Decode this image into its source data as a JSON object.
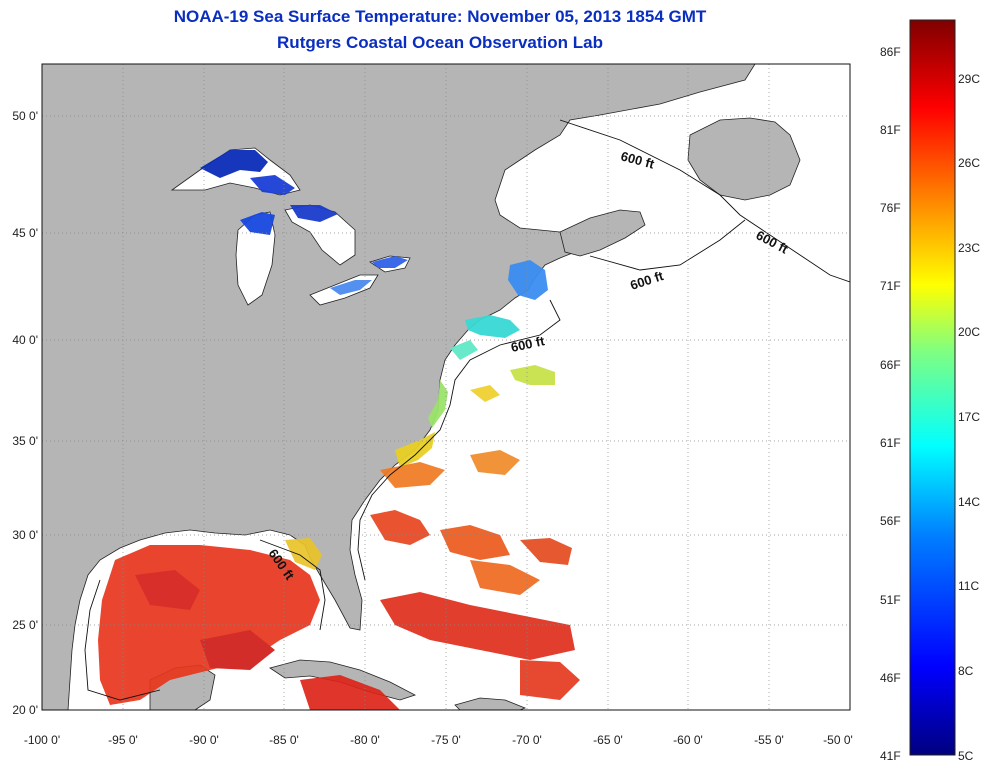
{
  "title": {
    "line1": "NOAA-19 Sea Surface Temperature:  November 05, 2013 1854 GMT",
    "line2": "Rutgers Coastal Ocean Observation Lab"
  },
  "map": {
    "lon_ticks": [
      "-100 0'",
      "-95 0'",
      "-90 0'",
      "-85 0'",
      "-80 0'",
      "-75 0'",
      "-70 0'",
      "-65 0'",
      "-60 0'",
      "-55 0'",
      "-50 0'"
    ],
    "lat_ticks": [
      "50 0'",
      "45 0'",
      "40 0'",
      "35 0'",
      "30 0'",
      "25 0'",
      "20 0'"
    ],
    "contour_label": "600 ft",
    "colors": {
      "land": "#b5b5b5",
      "ocean": "#ffffff",
      "grid": "#888888"
    }
  },
  "colorbar": {
    "fahrenheit": [
      "86F",
      "81F",
      "76F",
      "71F",
      "66F",
      "61F",
      "56F",
      "51F",
      "46F",
      "41F"
    ],
    "celsius": [
      "29C",
      "26C",
      "23C",
      "20C",
      "17C",
      "14C",
      "11C",
      "8C",
      "5C"
    ]
  }
}
